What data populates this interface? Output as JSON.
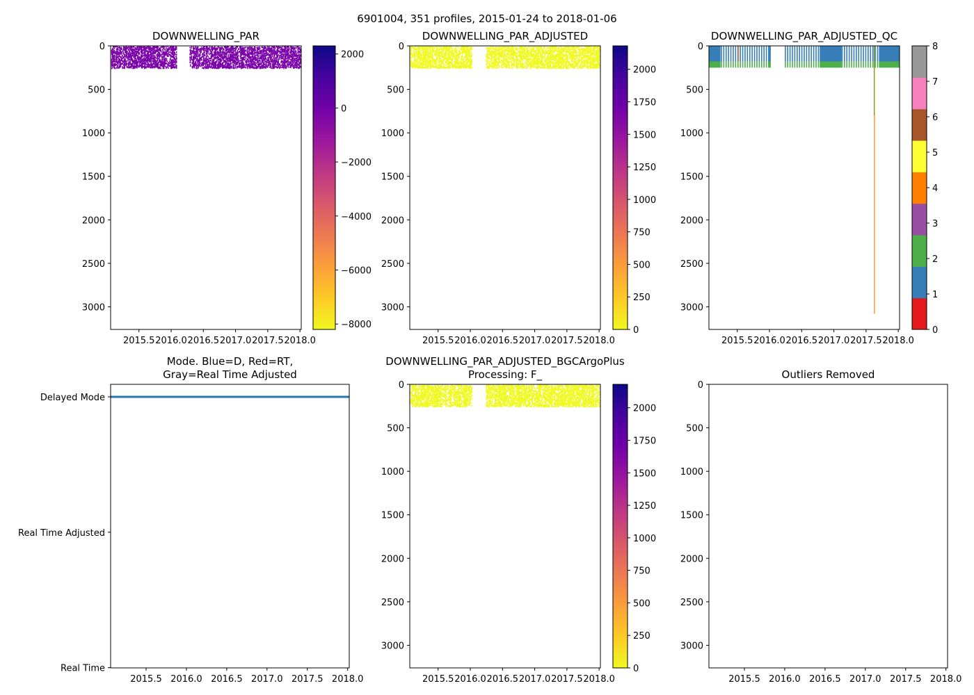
{
  "suptitle": "6901004, 351 profiles, 2015-01-24 to 2018-01-06",
  "colors": {
    "plasma": [
      "#0d0887",
      "#46039f",
      "#7201a8",
      "#9c179e",
      "#bd3786",
      "#d8576b",
      "#ed7953",
      "#fb9f3a",
      "#fdca26",
      "#f0f921"
    ],
    "qc": [
      "#e41a1c",
      "#377eb8",
      "#4daf4a",
      "#984ea3",
      "#ff7f00",
      "#ffff33",
      "#a65628",
      "#f781bf",
      "#999999"
    ],
    "mode_line": "#1f77b4"
  },
  "chart_data": [
    {
      "id": "raw",
      "type": "heatmap",
      "title": "DOWNWELLING_PAR",
      "xlim": [
        2015.06,
        2018.02
      ],
      "xticks": [
        "2015.5",
        "2016.0",
        "2016.5",
        "2017.0",
        "2017.5",
        "2018.0"
      ],
      "xtick_values": [
        2015.5,
        2016.0,
        2016.5,
        2017.0,
        2017.5,
        2018.0
      ],
      "ylim": [
        3260,
        0
      ],
      "yticks": [
        "0",
        "500",
        "1000",
        "1500",
        "2000",
        "2500",
        "3000"
      ],
      "ytick_values": [
        0,
        500,
        1000,
        1500,
        2000,
        2500,
        3000
      ],
      "depth_max": 250,
      "data_gaps": [
        [
          2016.08,
          2016.28
        ]
      ],
      "value_color": "#7a02a8",
      "colorbar": {
        "cmap": "plasma_r",
        "range": [
          -8200,
          2300
        ],
        "ticks": [
          "2000",
          "0",
          "−2000",
          "−4000",
          "−6000",
          "−8000"
        ],
        "tick_values": [
          2000,
          0,
          -2000,
          -4000,
          -6000,
          -8000
        ]
      }
    },
    {
      "id": "adjusted",
      "type": "heatmap",
      "title": "DOWNWELLING_PAR_ADJUSTED",
      "xlim": [
        2015.06,
        2018.02
      ],
      "xticks": [
        "2015.5",
        "2016.0",
        "2016.5",
        "2017.0",
        "2017.5",
        "2018.0"
      ],
      "xtick_values": [
        2015.5,
        2016.0,
        2016.5,
        2017.0,
        2017.5,
        2018.0
      ],
      "ylim": [
        3260,
        0
      ],
      "yticks": [
        "0",
        "500",
        "1000",
        "1500",
        "2000",
        "2500",
        "3000"
      ],
      "ytick_values": [
        0,
        500,
        1000,
        1500,
        2000,
        2500,
        3000
      ],
      "depth_max": 250,
      "data_gaps": [
        [
          2016.02,
          2016.24
        ]
      ],
      "value_color": "#f0f921",
      "colorbar": {
        "cmap": "plasma_r",
        "range": [
          0,
          2180
        ],
        "ticks": [
          "2000",
          "1750",
          "1500",
          "1250",
          "1000",
          "750",
          "500",
          "250",
          "0"
        ],
        "tick_values": [
          2000,
          1750,
          1500,
          1250,
          1000,
          750,
          500,
          250,
          0
        ]
      }
    },
    {
      "id": "qc",
      "type": "heatmap",
      "title": "DOWNWELLING_PAR_ADJUSTED_QC",
      "xlim": [
        2015.06,
        2018.02
      ],
      "xticks": [
        "2015.5",
        "2016.0",
        "2016.5",
        "2017.0",
        "2017.5",
        "2018.0"
      ],
      "xtick_values": [
        2015.5,
        2016.0,
        2016.5,
        2017.0,
        2017.5,
        2018.0
      ],
      "ylim": [
        3260,
        0
      ],
      "yticks": [
        "0",
        "500",
        "1000",
        "1500",
        "2000",
        "2500",
        "3000"
      ],
      "ytick_values": [
        0,
        500,
        1000,
        1500,
        2000,
        2500,
        3000
      ],
      "depth_max": 250,
      "qc1_depth": 180,
      "data_gaps": [
        [
          2016.02,
          2016.24
        ]
      ],
      "deep_profile": {
        "x": 2017.63,
        "depth": 3080,
        "qc": 4
      },
      "green_profile": {
        "x": 2017.63,
        "depth": 800,
        "qc": 2
      },
      "colorbar": {
        "cmap": "qc",
        "range": [
          0,
          8
        ],
        "ticks": [
          "0",
          "1",
          "2",
          "3",
          "4",
          "5",
          "6",
          "7",
          "8"
        ],
        "tick_values": [
          0,
          1,
          2,
          3,
          4,
          5,
          6,
          7,
          8
        ]
      }
    },
    {
      "id": "mode",
      "type": "line",
      "title_lines": [
        "Mode. Blue=D, Red=RT,",
        "Gray=Real Time Adjusted"
      ],
      "xlim": [
        2015.06,
        2018.02
      ],
      "xticks": [
        "2015.5",
        "2016.0",
        "2016.5",
        "2017.0",
        "2017.5",
        "2018.0"
      ],
      "xtick_values": [
        2015.5,
        2016.0,
        2016.5,
        2017.0,
        2017.5,
        2018.0
      ],
      "ylim": [
        0,
        2
      ],
      "yticks": [
        "Delayed Mode",
        "Real Time Adjusted",
        "Real Time"
      ],
      "ytick_values": [
        2,
        1,
        0
      ],
      "series": [
        {
          "name": "Delayed Mode",
          "x_range": [
            2015.06,
            2018.02
          ],
          "y": 2
        }
      ]
    },
    {
      "id": "bgc",
      "type": "heatmap",
      "title_lines": [
        "DOWNWELLING_PAR_ADJUSTED_BGCArgoPlus",
        "Processing: F_"
      ],
      "xlim": [
        2015.06,
        2018.02
      ],
      "xticks": [
        "2015.5",
        "2016.0",
        "2016.5",
        "2017.0",
        "2017.5",
        "2018.0"
      ],
      "xtick_values": [
        2015.5,
        2016.0,
        2016.5,
        2017.0,
        2017.5,
        2018.0
      ],
      "ylim": [
        3260,
        0
      ],
      "yticks": [
        "0",
        "500",
        "1000",
        "1500",
        "2000",
        "2500",
        "3000"
      ],
      "ytick_values": [
        0,
        500,
        1000,
        1500,
        2000,
        2500,
        3000
      ],
      "depth_max": 250,
      "data_gaps": [
        [
          2016.02,
          2016.24
        ]
      ],
      "value_color": "#f0f921",
      "colorbar": {
        "cmap": "plasma_r",
        "range": [
          0,
          2180
        ],
        "ticks": [
          "2000",
          "1750",
          "1500",
          "1250",
          "1000",
          "750",
          "500",
          "250",
          "0"
        ],
        "tick_values": [
          2000,
          1750,
          1500,
          1250,
          1000,
          750,
          500,
          250,
          0
        ]
      }
    },
    {
      "id": "outliers",
      "type": "scatter",
      "title": "Outliers Removed",
      "xlim": [
        2015.06,
        2018.02
      ],
      "xticks": [
        "2015.5",
        "2016.0",
        "2016.5",
        "2017.0",
        "2017.5",
        "2018.0"
      ],
      "xtick_values": [
        2015.5,
        2016.0,
        2016.5,
        2017.0,
        2017.5,
        2018.0
      ],
      "ylim": [
        3260,
        0
      ],
      "yticks": [
        "0",
        "500",
        "1000",
        "1500",
        "2000",
        "2500",
        "3000"
      ],
      "ytick_values": [
        0,
        500,
        1000,
        1500,
        2000,
        2500,
        3000
      ],
      "points": []
    }
  ]
}
